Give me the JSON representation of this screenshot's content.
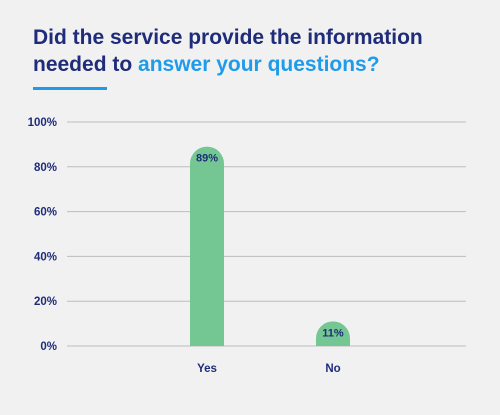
{
  "title": {
    "part1": "Did the service provide the information needed to ",
    "part2": "answer your questions?"
  },
  "colors": {
    "title": "#1e2c7a",
    "accent": "#1e9be9",
    "bar": "#74c792",
    "grid": "#bdbdbd",
    "background": "#f1f1f1"
  },
  "chart_data": {
    "type": "bar",
    "categories": [
      "Yes",
      "No"
    ],
    "values": [
      89,
      11
    ],
    "data_labels": [
      "89%",
      "11%"
    ],
    "ylim": [
      0,
      100
    ],
    "yticks": [
      0,
      20,
      40,
      60,
      80,
      100
    ],
    "ytick_labels": [
      "0%",
      "20%",
      "40%",
      "60%",
      "80%",
      "100%"
    ],
    "grid": true
  }
}
